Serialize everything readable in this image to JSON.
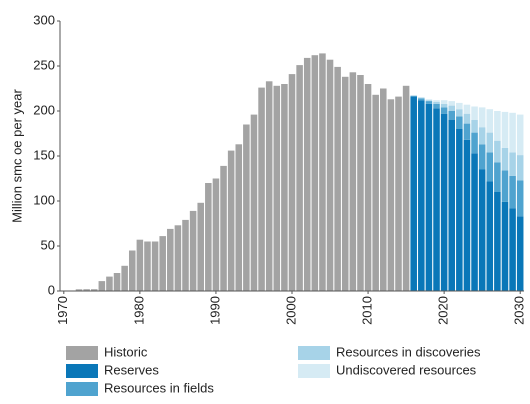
{
  "chart_data": {
    "type": "bar",
    "stacked": true,
    "y_label": "Million smc oe per year",
    "x": [
      1971,
      1972,
      1973,
      1974,
      1975,
      1976,
      1977,
      1978,
      1979,
      1980,
      1981,
      1982,
      1983,
      1984,
      1985,
      1986,
      1987,
      1988,
      1989,
      1990,
      1991,
      1992,
      1993,
      1994,
      1995,
      1996,
      1997,
      1998,
      1999,
      2000,
      2001,
      2002,
      2003,
      2004,
      2005,
      2006,
      2007,
      2008,
      2009,
      2010,
      2011,
      2012,
      2013,
      2014,
      2015,
      2016,
      2017,
      2018,
      2019,
      2020,
      2021,
      2022,
      2023,
      2024,
      2025,
      2026,
      2027,
      2028,
      2029,
      2030
    ],
    "xlim": [
      1969.5,
      2030.5
    ],
    "xticks": [
      1970,
      1980,
      1990,
      2000,
      2010,
      2020,
      2030
    ],
    "ylim": [
      0,
      300
    ],
    "yticks": [
      0,
      50,
      100,
      150,
      200,
      250,
      300
    ],
    "grid": false,
    "series": [
      {
        "name": "Historic",
        "color": "#a3a3a3",
        "values": [
          0.3,
          1.9,
          2,
          2,
          11,
          16,
          20,
          28,
          45,
          57,
          55,
          55,
          61,
          69,
          73,
          79,
          89,
          98,
          120,
          125,
          139,
          156,
          163,
          185,
          196,
          226,
          233,
          228,
          230,
          241,
          251,
          259,
          262,
          264,
          257,
          249,
          238,
          243,
          240,
          230,
          218,
          225,
          213,
          216,
          228,
          null,
          null,
          null,
          null,
          null,
          null,
          null,
          null,
          null,
          null,
          null,
          null,
          null,
          null,
          null
        ]
      },
      {
        "name": "Reserves",
        "color": "#0a77b8",
        "values": [
          null,
          null,
          null,
          null,
          null,
          null,
          null,
          null,
          null,
          null,
          null,
          null,
          null,
          null,
          null,
          null,
          null,
          null,
          null,
          null,
          null,
          null,
          null,
          null,
          null,
          null,
          null,
          null,
          null,
          null,
          null,
          null,
          null,
          null,
          null,
          null,
          null,
          null,
          null,
          null,
          null,
          null,
          null,
          null,
          null,
          216,
          212,
          208,
          203,
          197,
          190,
          180,
          168,
          153,
          135,
          122,
          110,
          99,
          92,
          83
        ]
      },
      {
        "name": "Resources in fields",
        "color": "#4fa3cf",
        "values": [
          null,
          null,
          null,
          null,
          null,
          null,
          null,
          null,
          null,
          null,
          null,
          null,
          null,
          null,
          null,
          null,
          null,
          null,
          null,
          null,
          null,
          null,
          null,
          null,
          null,
          null,
          null,
          null,
          null,
          null,
          null,
          null,
          null,
          null,
          null,
          null,
          null,
          null,
          null,
          null,
          null,
          null,
          null,
          null,
          null,
          1,
          2,
          3,
          5,
          7,
          10,
          14,
          18,
          23,
          28,
          32,
          33,
          35,
          36,
          40
        ]
      },
      {
        "name": "Resources in discoveries",
        "color": "#a7d3e8",
        "values": [
          null,
          null,
          null,
          null,
          null,
          null,
          null,
          null,
          null,
          null,
          null,
          null,
          null,
          null,
          null,
          null,
          null,
          null,
          null,
          null,
          null,
          null,
          null,
          null,
          null,
          null,
          null,
          null,
          null,
          null,
          null,
          null,
          null,
          null,
          null,
          null,
          null,
          null,
          null,
          null,
          null,
          null,
          null,
          null,
          null,
          0,
          1,
          1,
          2,
          4,
          6,
          8,
          11,
          14,
          19,
          22,
          24,
          25,
          26,
          28
        ]
      },
      {
        "name": "Undiscovered resources",
        "color": "#d6ebf4",
        "values": [
          null,
          null,
          null,
          null,
          null,
          null,
          null,
          null,
          null,
          null,
          null,
          null,
          null,
          null,
          null,
          null,
          null,
          null,
          null,
          null,
          null,
          null,
          null,
          null,
          null,
          null,
          null,
          null,
          null,
          null,
          null,
          null,
          null,
          null,
          null,
          null,
          null,
          null,
          null,
          null,
          null,
          null,
          null,
          null,
          null,
          0,
          0,
          1,
          2,
          4,
          5,
          7,
          10,
          15,
          22,
          26,
          33,
          40,
          44,
          45
        ]
      }
    ]
  }
}
